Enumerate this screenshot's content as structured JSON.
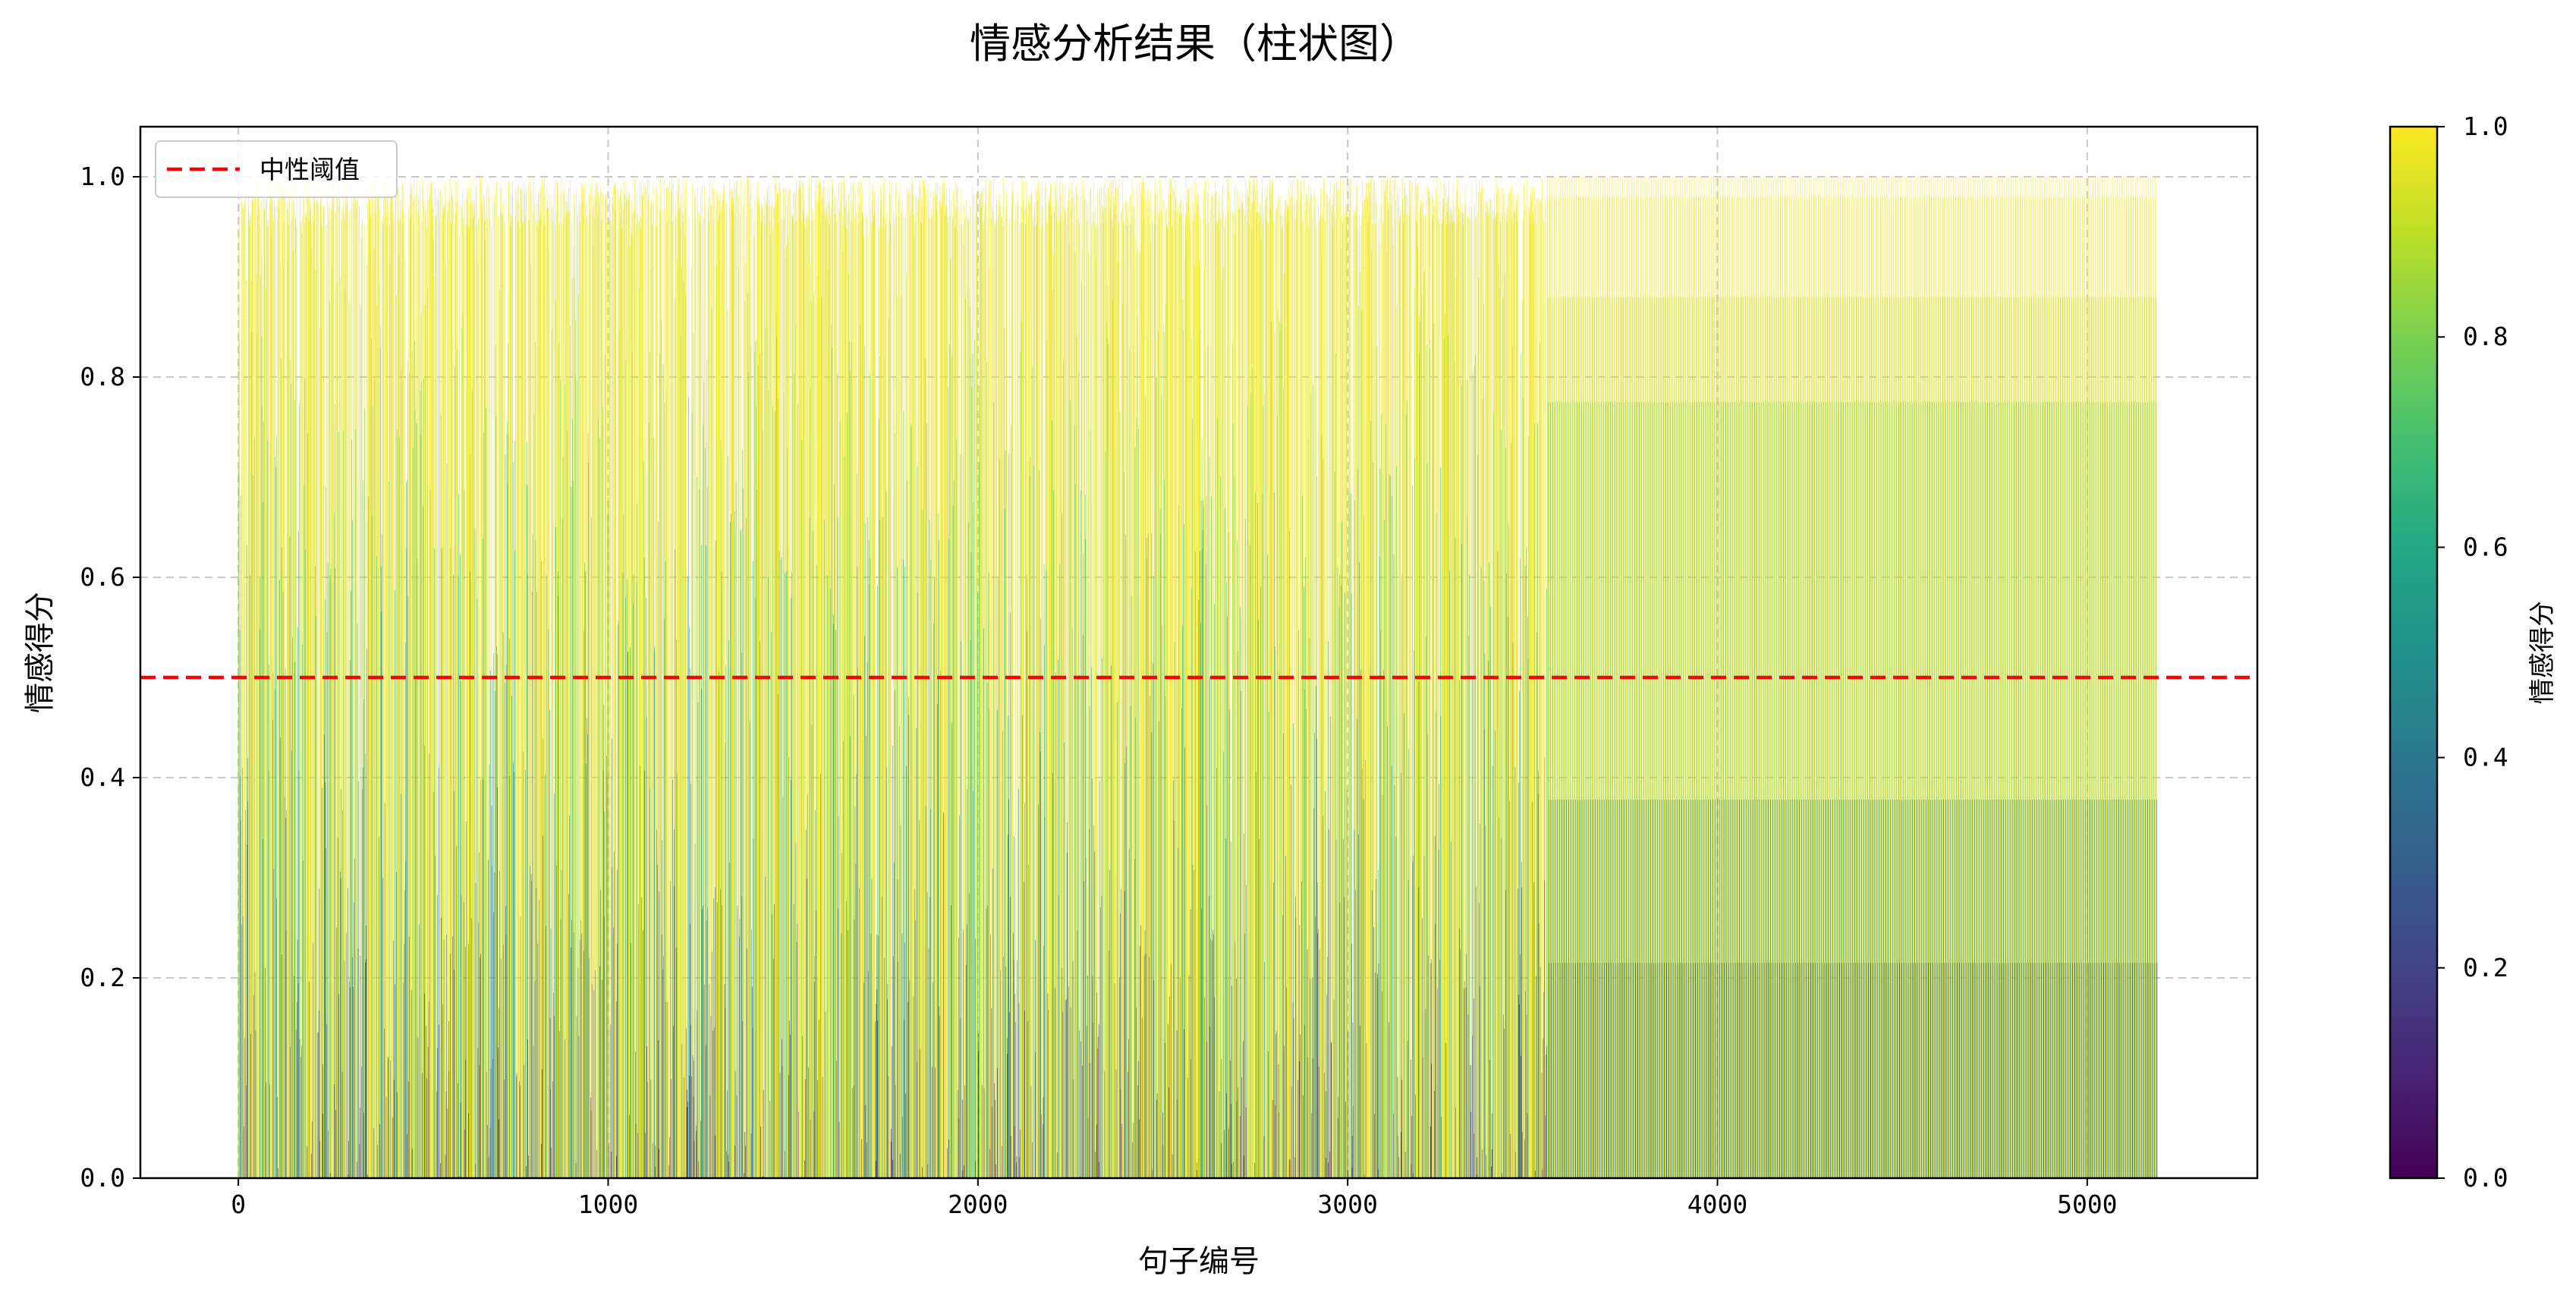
{
  "chart_data": {
    "type": "bar",
    "title": "情感分析结果（柱状图）",
    "xlabel": "句子编号",
    "ylabel": "情感得分",
    "xlim": [
      -265,
      5460
    ],
    "ylim": [
      0,
      1.05
    ],
    "x_ticks": [
      0,
      1000,
      2000,
      3000,
      4000,
      5000
    ],
    "y_ticks": [
      0.0,
      0.2,
      0.4,
      0.6,
      0.8,
      1.0
    ],
    "grid": true,
    "n_bars": 5190,
    "colormap": "viridis",
    "colorbar": {
      "label": "情感得分",
      "range": [
        0.0,
        1.0
      ],
      "ticks": [
        0.0,
        0.2,
        0.4,
        0.6,
        0.8,
        1.0
      ]
    },
    "threshold": {
      "label": "中性阈值",
      "value": 0.5,
      "color": "#ff0000",
      "style": "dashed"
    },
    "legend": {
      "placement": "upper-left",
      "entries": [
        "中性阈值"
      ]
    },
    "segments": [
      {
        "x_range": [
          0,
          3540
        ],
        "pattern": "irregular",
        "dominant_values": [
          1.0,
          0.95,
          0.85,
          0.7,
          0.55,
          0.4,
          0.25,
          0.1,
          0.05
        ]
      },
      {
        "x_range": [
          3540,
          5190
        ],
        "pattern": "periodic",
        "repeating_values": [
          1.0,
          0.98,
          0.88,
          0.775,
          0.378,
          0.215
        ]
      }
    ]
  }
}
